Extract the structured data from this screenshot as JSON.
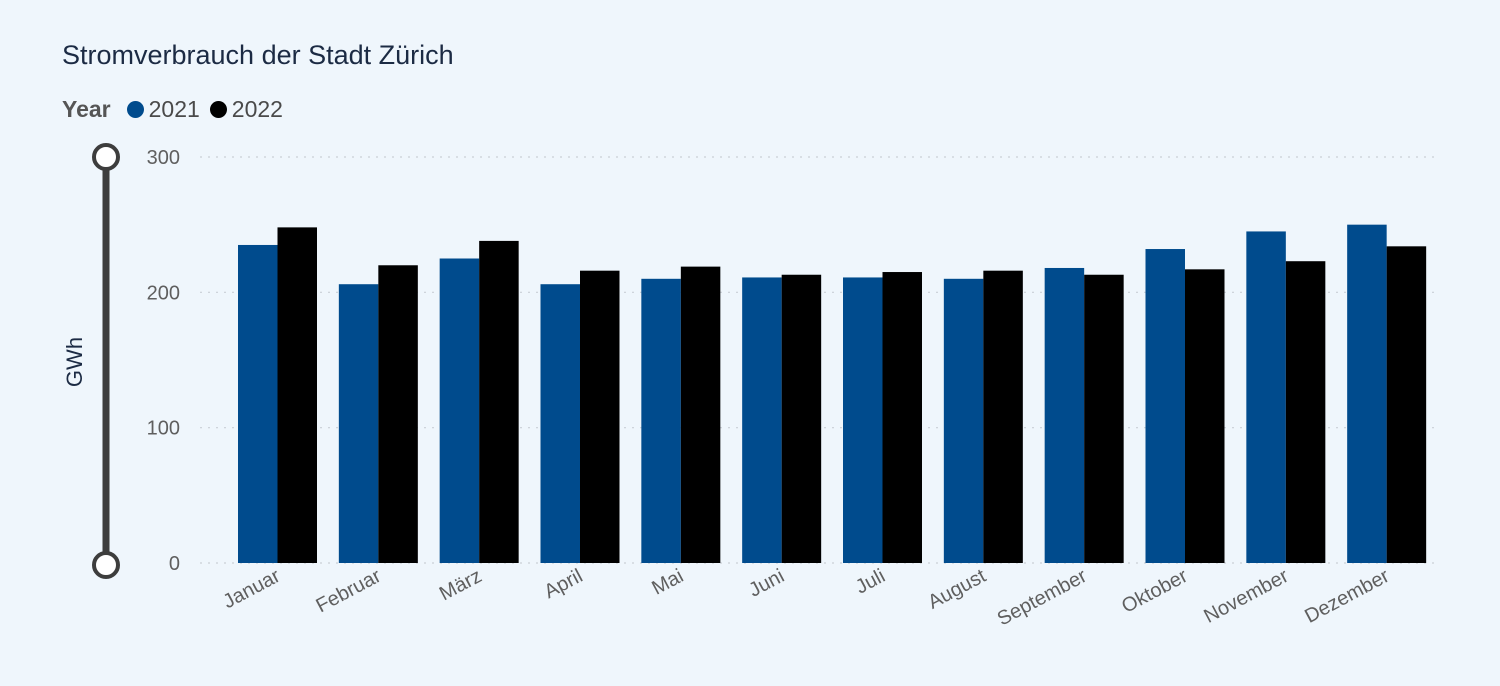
{
  "title": "Stromverbrauch der Stadt Zürich",
  "legend": {
    "title": "Year",
    "items": [
      {
        "label": "2021",
        "color": "#004b8d"
      },
      {
        "label": "2022",
        "color": "#000000"
      }
    ]
  },
  "chart_data": {
    "type": "bar",
    "title": "Stromverbrauch der Stadt Zürich",
    "ylabel": "GWh",
    "xlabel": "",
    "ylim": [
      0,
      300
    ],
    "yticks": [
      0,
      100,
      200,
      300
    ],
    "grid": true,
    "legend_position": "top-left",
    "categories": [
      "Januar",
      "Februar",
      "März",
      "April",
      "Mai",
      "Juni",
      "Juli",
      "August",
      "September",
      "Oktober",
      "November",
      "Dezember"
    ],
    "series": [
      {
        "name": "2021",
        "color": "#004b8d",
        "values": [
          235,
          206,
          225,
          206,
          210,
          211,
          211,
          210,
          218,
          232,
          245,
          250
        ]
      },
      {
        "name": "2022",
        "color": "#000000",
        "values": [
          248,
          220,
          238,
          216,
          219,
          213,
          215,
          216,
          213,
          217,
          223,
          234
        ]
      }
    ]
  }
}
